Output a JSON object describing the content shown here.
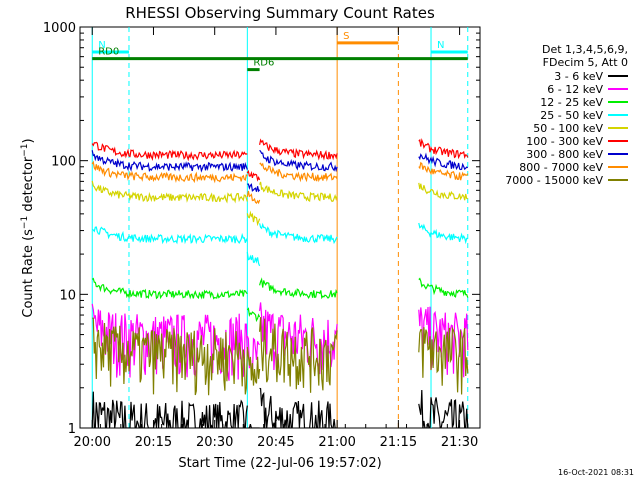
{
  "chart_data": {
    "type": "line",
    "title": "RHESSI Observing Summary Count Rates",
    "xlabel": "Start Time (22-Jul-06 19:57:02)",
    "ylabel": "Count Rate (s⁻¹ detector⁻¹)",
    "y_scale": "log",
    "ylim": [
      1,
      1000
    ],
    "xlim_minutes": [
      0,
      98
    ],
    "x_ticks": [
      {
        "label": "20:00",
        "min": 3
      },
      {
        "label": "20:15",
        "min": 18
      },
      {
        "label": "20:30",
        "min": 33
      },
      {
        "label": "20:45",
        "min": 48
      },
      {
        "label": "21:00",
        "min": 63
      },
      {
        "label": "21:15",
        "min": 78
      },
      {
        "label": "21:30",
        "min": 93
      }
    ],
    "y_ticks": [
      {
        "label": "1",
        "v": 1
      },
      {
        "label": "10",
        "v": 10
      },
      {
        "label": "100",
        "v": 100
      },
      {
        "label": "1000",
        "v": 1000
      }
    ],
    "legend_header": [
      "Det 1,3,4,5,6,9,",
      "FDecim 5, Att 0"
    ],
    "legend_position": "right",
    "timestamp": "16-Oct-2021 08:31",
    "series": [
      {
        "name": "3 - 6 keV",
        "color": "#000000",
        "level": 1.0
      },
      {
        "name": "6 - 12 keV",
        "color": "#ff00ff",
        "level": 4.5
      },
      {
        "name": "12 - 25 keV",
        "color": "#00ee00",
        "level": 10
      },
      {
        "name": "25 - 50 keV",
        "color": "#00ffff",
        "level": 26
      },
      {
        "name": "50 - 100 keV",
        "color": "#d4d400",
        "level": 53
      },
      {
        "name": "100 - 300 keV",
        "color": "#ff0000",
        "level": 110
      },
      {
        "name": "300 - 800 keV",
        "color": "#0000cc",
        "level": 90
      },
      {
        "name": "800 - 7000 keV",
        "color": "#ff8c00",
        "level": 75
      },
      {
        "name": "7000 - 15000 keV",
        "color": "#808000",
        "level": 3.5
      }
    ],
    "segments": [
      {
        "start": 3,
        "end": 41
      },
      {
        "start": 41,
        "end": 44
      },
      {
        "start": 44,
        "end": 63
      },
      {
        "start": 83,
        "end": 95
      }
    ],
    "annotations": [
      {
        "label": "N",
        "color": "#00ffff",
        "start": 3,
        "end": 12,
        "level": 650
      },
      {
        "label": "N",
        "color": "#00ffff",
        "start": 86,
        "end": 95,
        "level": 650
      },
      {
        "label": "S",
        "color": "#ff8c00",
        "start": 63,
        "end": 78,
        "level": 760
      },
      {
        "label": "RD0",
        "color": "#008000",
        "start": 3,
        "end": 95,
        "level": 580
      },
      {
        "label": "RD6",
        "color": "#008000",
        "start": 41,
        "end": 44,
        "level": 480
      }
    ],
    "vlines": [
      {
        "min": 3,
        "color": "#00ffff",
        "style": "solid"
      },
      {
        "min": 12,
        "color": "#00ffff",
        "style": "dashed"
      },
      {
        "min": 41,
        "color": "#00ffff",
        "style": "solid"
      },
      {
        "min": 63,
        "color": "#ff8c00",
        "style": "solid"
      },
      {
        "min": 78,
        "color": "#ff8c00",
        "style": "dashed"
      },
      {
        "min": 86,
        "color": "#00ffff",
        "style": "solid"
      },
      {
        "min": 95,
        "color": "#00ffff",
        "style": "dashed"
      }
    ]
  }
}
